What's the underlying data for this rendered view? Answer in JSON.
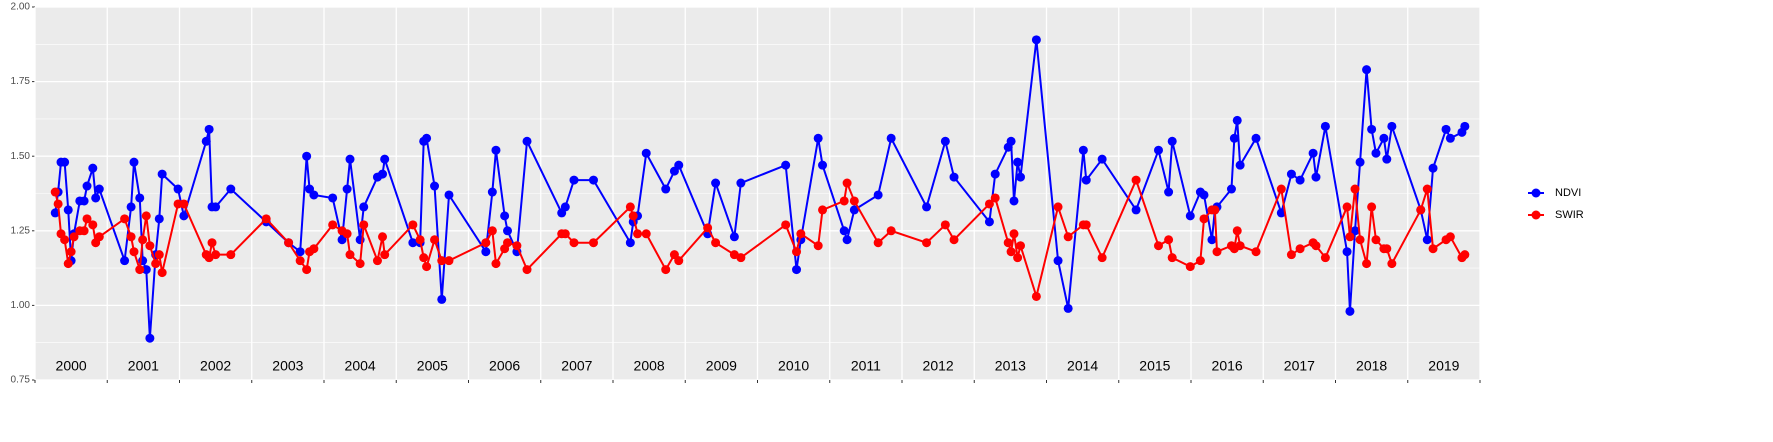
{
  "chart_data": {
    "type": "line",
    "x": [
      2000.28,
      2000.32,
      2000.36,
      2000.41,
      2000.46,
      2000.5,
      2000.54,
      2000.62,
      2000.68,
      2000.72,
      2000.8,
      2000.84,
      2000.89,
      2001.24,
      2001.33,
      2001.37,
      2001.45,
      2001.49,
      2001.54,
      2001.59,
      2001.67,
      2001.72,
      2001.76,
      2001.98,
      2002.06,
      2002.37,
      2002.41,
      2002.45,
      2002.5,
      2002.71,
      2003.2,
      2003.51,
      2003.67,
      2003.76,
      2003.8,
      2003.86,
      2004.12,
      2004.25,
      2004.32,
      2004.36,
      2004.5,
      2004.55,
      2004.74,
      2004.81,
      2004.84,
      2005.23,
      2005.33,
      2005.38,
      2005.42,
      2005.53,
      2005.63,
      2005.73,
      2006.24,
      2006.33,
      2006.38,
      2006.5,
      2006.54,
      2006.67,
      2006.81,
      2007.29,
      2007.34,
      2007.46,
      2007.73,
      2008.24,
      2008.28,
      2008.34,
      2008.46,
      2008.73,
      2008.85,
      2008.91,
      2009.31,
      2009.42,
      2009.68,
      2009.77,
      2010.39,
      2010.54,
      2010.6,
      2010.84,
      2010.9,
      2011.2,
      2011.24,
      2011.34,
      2011.67,
      2011.85,
      2012.34,
      2012.6,
      2012.72,
      2013.21,
      2013.29,
      2013.47,
      2013.51,
      2013.55,
      2013.6,
      2013.64,
      2013.86,
      2014.16,
      2014.3,
      2014.51,
      2014.55,
      2014.77,
      2015.24,
      2015.55,
      2015.69,
      2015.74,
      2015.99,
      2016.13,
      2016.18,
      2016.29,
      2016.33,
      2016.36,
      2016.56,
      2016.6,
      2016.64,
      2016.68,
      2016.9,
      2017.25,
      2017.39,
      2017.51,
      2017.69,
      2017.73,
      2017.86,
      2018.16,
      2018.2,
      2018.27,
      2018.34,
      2018.43,
      2018.5,
      2018.56,
      2018.67,
      2018.71,
      2018.78,
      2019.18,
      2019.27,
      2019.35,
      2019.53,
      2019.59,
      2019.75,
      2019.79
    ],
    "series": [
      {
        "name": "NDVI",
        "color": "#0000ff",
        "values": [
          1.31,
          1.38,
          1.48,
          1.48,
          1.32,
          1.15,
          1.24,
          1.35,
          1.35,
          1.4,
          1.46,
          1.36,
          1.39,
          1.15,
          1.33,
          1.48,
          1.36,
          1.15,
          1.12,
          0.89,
          1.17,
          1.29,
          1.44,
          1.39,
          1.3,
          1.55,
          1.59,
          1.33,
          1.33,
          1.39,
          1.28,
          1.21,
          1.18,
          1.5,
          1.39,
          1.37,
          1.36,
          1.22,
          1.39,
          1.49,
          1.22,
          1.33,
          1.43,
          1.44,
          1.49,
          1.21,
          1.21,
          1.55,
          1.56,
          1.4,
          1.02,
          1.37,
          1.18,
          1.38,
          1.52,
          1.3,
          1.25,
          1.18,
          1.55,
          1.31,
          1.33,
          1.42,
          1.42,
          1.21,
          1.28,
          1.3,
          1.51,
          1.39,
          1.45,
          1.47,
          1.24,
          1.41,
          1.23,
          1.41,
          1.47,
          1.12,
          1.22,
          1.56,
          1.47,
          1.25,
          1.22,
          1.32,
          1.37,
          1.56,
          1.33,
          1.55,
          1.43,
          1.28,
          1.44,
          1.53,
          1.55,
          1.35,
          1.48,
          1.43,
          1.89,
          1.15,
          0.99,
          1.52,
          1.42,
          1.49,
          1.32,
          1.52,
          1.38,
          1.55,
          1.3,
          1.38,
          1.37,
          1.22,
          1.32,
          1.33,
          1.39,
          1.56,
          1.62,
          1.47,
          1.56,
          1.31,
          1.44,
          1.42,
          1.51,
          1.43,
          1.6,
          1.18,
          0.98,
          1.25,
          1.48,
          1.79,
          1.59,
          1.51,
          1.56,
          1.49,
          1.6,
          1.32,
          1.22,
          1.46,
          1.59,
          1.56,
          1.58,
          1.6
        ]
      },
      {
        "name": "SWIR",
        "color": "#ff0000",
        "values": [
          1.38,
          1.34,
          1.24,
          1.22,
          1.14,
          1.18,
          1.23,
          1.25,
          1.25,
          1.29,
          1.27,
          1.21,
          1.23,
          1.29,
          1.23,
          1.18,
          1.12,
          1.22,
          1.3,
          1.2,
          1.14,
          1.17,
          1.11,
          1.34,
          1.34,
          1.17,
          1.16,
          1.21,
          1.17,
          1.17,
          1.29,
          1.21,
          1.15,
          1.12,
          1.18,
          1.19,
          1.27,
          1.25,
          1.24,
          1.17,
          1.14,
          1.27,
          1.15,
          1.23,
          1.17,
          1.27,
          1.22,
          1.16,
          1.13,
          1.22,
          1.15,
          1.15,
          1.21,
          1.25,
          1.14,
          1.19,
          1.21,
          1.2,
          1.12,
          1.24,
          1.24,
          1.21,
          1.21,
          1.33,
          1.3,
          1.24,
          1.24,
          1.12,
          1.17,
          1.15,
          1.26,
          1.21,
          1.17,
          1.16,
          1.27,
          1.18,
          1.24,
          1.2,
          1.32,
          1.35,
          1.41,
          1.35,
          1.21,
          1.25,
          1.21,
          1.27,
          1.22,
          1.34,
          1.36,
          1.21,
          1.18,
          1.24,
          1.16,
          1.2,
          1.03,
          1.33,
          1.23,
          1.27,
          1.27,
          1.16,
          1.42,
          1.2,
          1.22,
          1.16,
          1.13,
          1.15,
          1.29,
          1.32,
          1.32,
          1.18,
          1.2,
          1.19,
          1.25,
          1.2,
          1.18,
          1.39,
          1.17,
          1.19,
          1.21,
          1.2,
          1.16,
          1.33,
          1.23,
          1.39,
          1.22,
          1.14,
          1.33,
          1.22,
          1.19,
          1.19,
          1.14,
          1.32,
          1.39,
          1.19,
          1.22,
          1.23,
          1.16,
          1.17
        ]
      }
    ],
    "xlim": [
      2000,
      2020
    ],
    "xticks": [
      2000,
      2001,
      2002,
      2003,
      2004,
      2005,
      2006,
      2007,
      2008,
      2009,
      2010,
      2011,
      2012,
      2013,
      2014,
      2015,
      2016,
      2017,
      2018,
      2019,
      2020
    ],
    "x_labels": [
      {
        "value": 2000.5,
        "label": "2000"
      },
      {
        "value": 2001.5,
        "label": "2001"
      },
      {
        "value": 2002.5,
        "label": "2002"
      },
      {
        "value": 2003.5,
        "label": "2003"
      },
      {
        "value": 2004.5,
        "label": "2004"
      },
      {
        "value": 2005.5,
        "label": "2005"
      },
      {
        "value": 2006.5,
        "label": "2006"
      },
      {
        "value": 2007.5,
        "label": "2007"
      },
      {
        "value": 2008.5,
        "label": "2008"
      },
      {
        "value": 2009.5,
        "label": "2009"
      },
      {
        "value": 2010.5,
        "label": "2010"
      },
      {
        "value": 2011.5,
        "label": "2011"
      },
      {
        "value": 2012.5,
        "label": "2012"
      },
      {
        "value": 2013.5,
        "label": "2013"
      },
      {
        "value": 2014.5,
        "label": "2014"
      },
      {
        "value": 2015.5,
        "label": "2015"
      },
      {
        "value": 2016.5,
        "label": "2016"
      },
      {
        "value": 2017.5,
        "label": "2017"
      },
      {
        "value": 2018.5,
        "label": "2018"
      },
      {
        "value": 2019.5,
        "label": "2019"
      }
    ],
    "ylim": [
      0.75,
      2.0
    ],
    "yticks": [
      {
        "value": 0.75,
        "label": "0.75"
      },
      {
        "value": 1.0,
        "label": "1.00"
      },
      {
        "value": 1.25,
        "label": "1.25"
      },
      {
        "value": 1.5,
        "label": "1.50"
      },
      {
        "value": 1.75,
        "label": "1.75"
      },
      {
        "value": 2.0,
        "label": "2.00"
      }
    ],
    "grid": true,
    "legend": "right"
  }
}
